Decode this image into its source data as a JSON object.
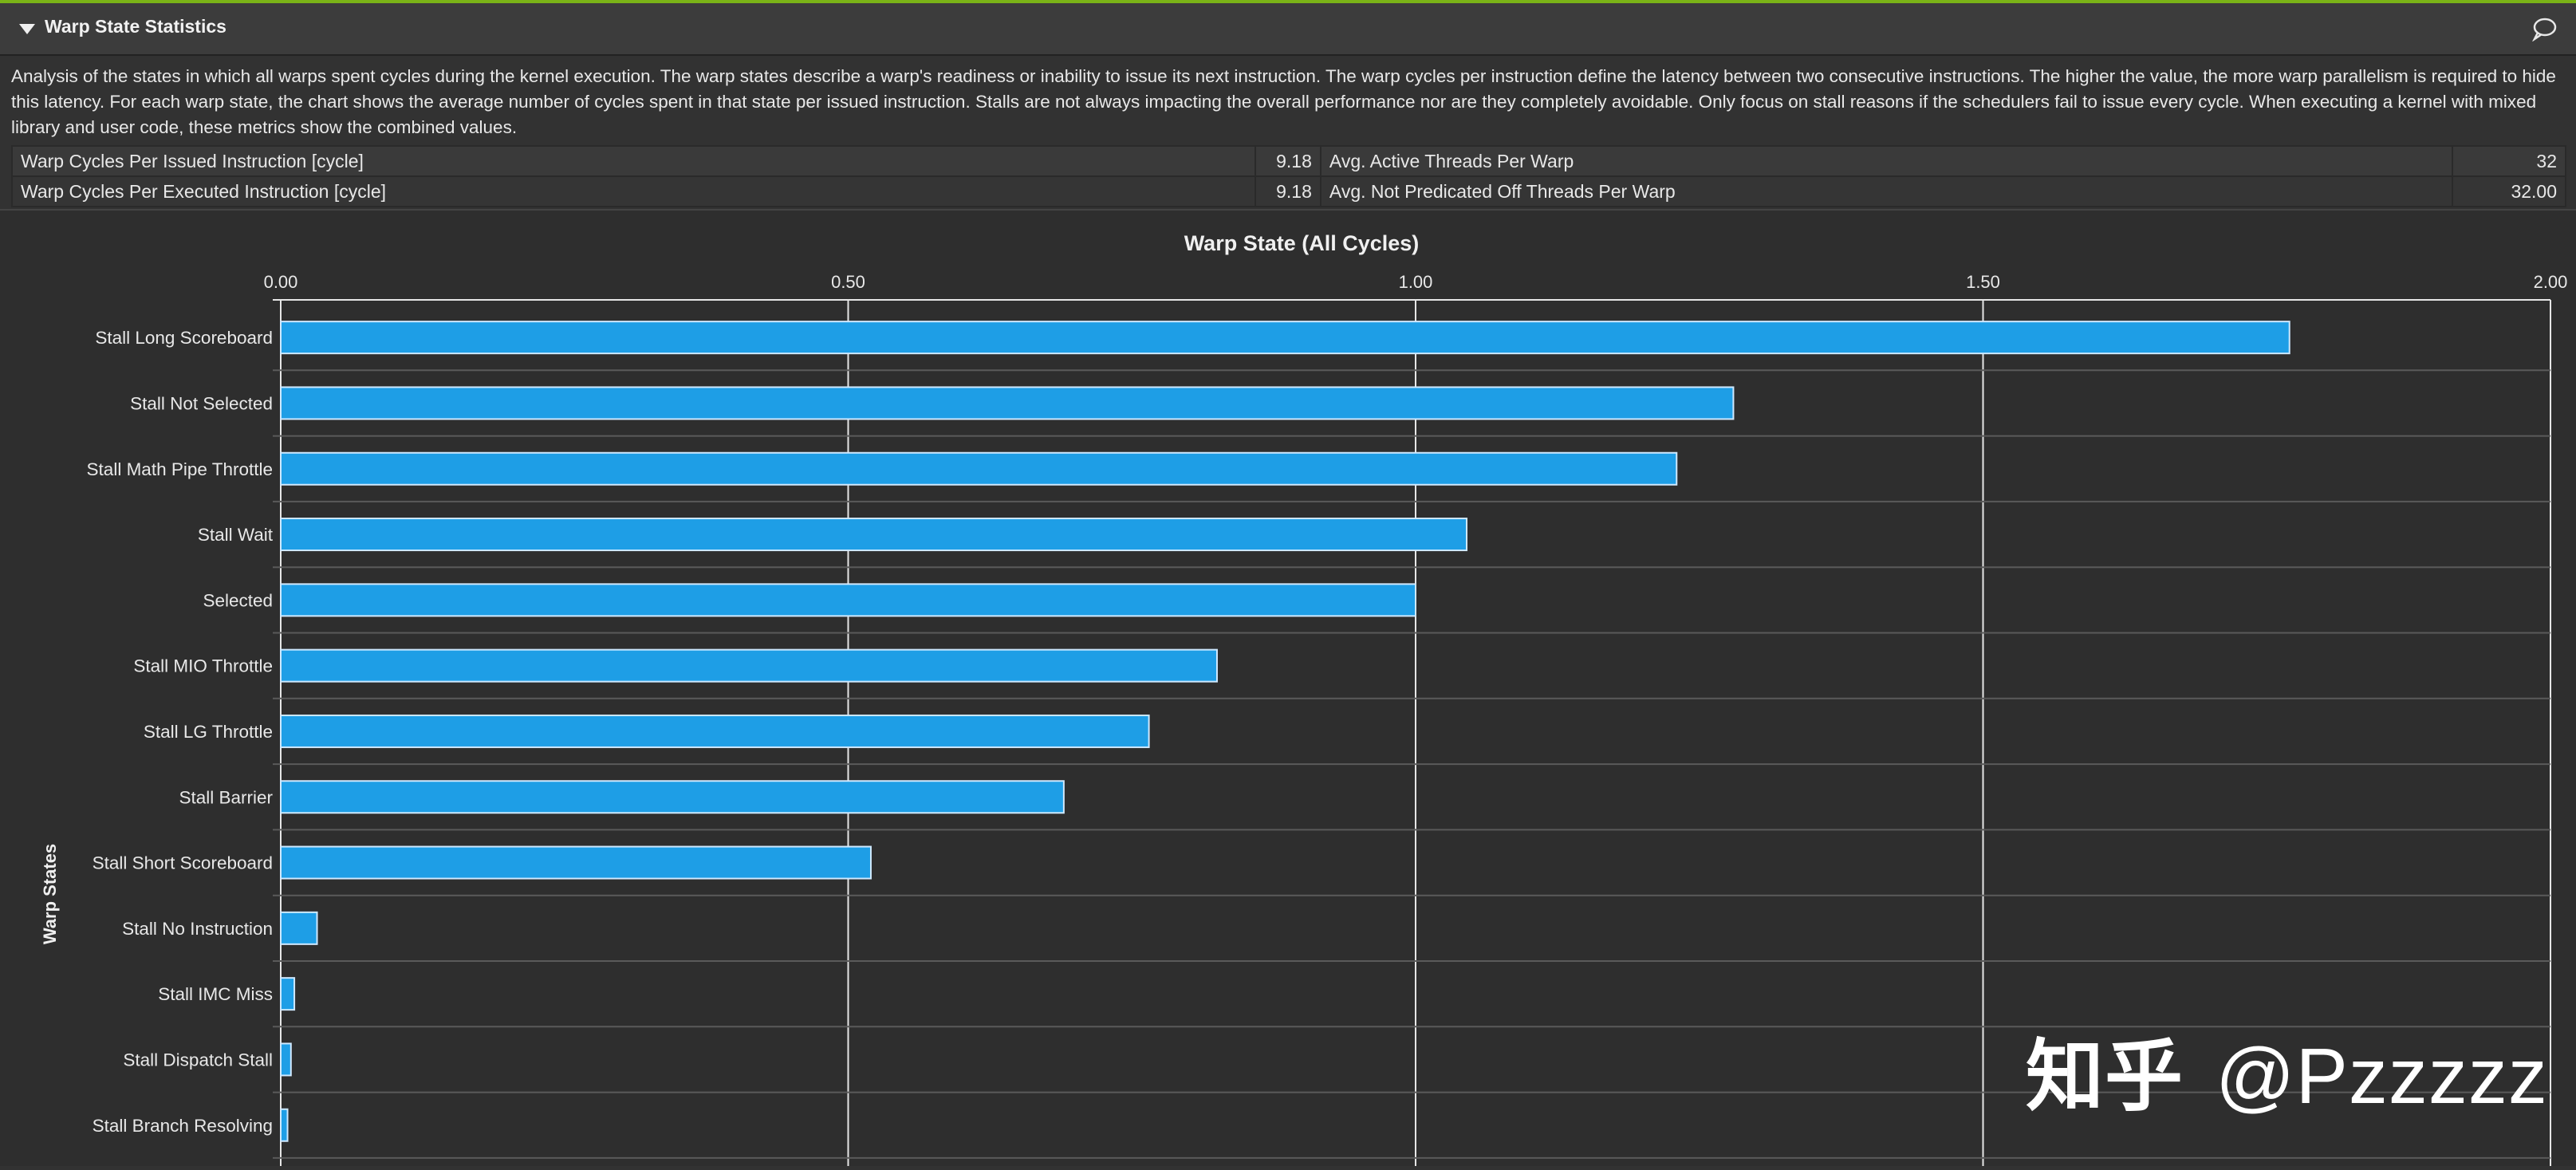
{
  "section": {
    "title": "Warp State Statistics",
    "description": "Analysis of the states in which all warps spent cycles during the kernel execution. The warp states describe a warp's readiness or inability to issue its next instruction. The warp cycles per instruction define the latency between two consecutive instructions. The higher the value, the more warp parallelism is required to hide this latency. For each warp state, the chart shows the average number of cycles spent in that state per issued instruction. Stalls are not always impacting the overall performance nor are they completely avoidable. Only focus on stall reasons if the schedulers fail to issue every cycle. When executing a kernel with mixed library and user code, these metrics show the combined values."
  },
  "metrics": [
    {
      "label": "Warp Cycles Per Issued Instruction [cycle]",
      "value": "9.18",
      "label2": "Avg. Active Threads Per Warp",
      "value2": "32"
    },
    {
      "label": "Warp Cycles Per Executed Instruction [cycle]",
      "value": "9.18",
      "label2": "Avg. Not Predicated Off Threads Per Warp",
      "value2": "32.00"
    }
  ],
  "colors": {
    "bar": "#1e9ee6",
    "bar_border": "#cfe9ff",
    "grid": "#e6e6e6",
    "background": "#2e2e2e"
  },
  "chart_data": {
    "type": "bar",
    "orientation": "horizontal",
    "title": "Warp State (All Cycles)",
    "ylabel": "Warp States",
    "xlabel": "",
    "xlim": [
      0,
      2
    ],
    "ticks": [
      0,
      0.5,
      1.0,
      1.5,
      2.0
    ],
    "tick_labels": [
      "0.00",
      "0.50",
      "1.00",
      "1.50",
      "2.00"
    ],
    "categories": [
      "Stall Long Scoreboard",
      "Stall Not Selected",
      "Stall Math Pipe Throttle",
      "Stall Wait",
      "Selected",
      "Stall MIO Throttle",
      "Stall LG Throttle",
      "Stall Barrier",
      "Stall Short Scoreboard",
      "Stall No Instruction",
      "Stall IMC Miss",
      "Stall Dispatch Stall",
      "Stall Branch Resolving"
    ],
    "values": [
      1.77,
      1.28,
      1.23,
      1.045,
      1.0,
      0.825,
      0.765,
      0.69,
      0.52,
      0.032,
      0.012,
      0.009,
      0.006
    ]
  },
  "watermark": {
    "cn": "知乎",
    "user": "@Pzzzzz"
  }
}
